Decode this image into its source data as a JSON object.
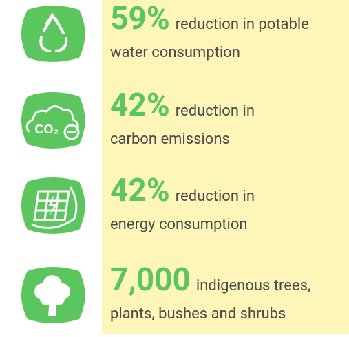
{
  "items": [
    {
      "highlight": "59%",
      "line1": "reduction in potable",
      "line2": "water consumption"
    },
    {
      "highlight": "42%",
      "line1": "reduction in",
      "line2": "carbon emissions",
      "icon_text": "CO₂"
    },
    {
      "highlight": "42%",
      "line1": "reduction in",
      "line2": "energy consumption"
    },
    {
      "highlight": "7,000",
      "line1": "indigenous trees,",
      "line2": "plants, bushes and shrubs"
    }
  ]
}
